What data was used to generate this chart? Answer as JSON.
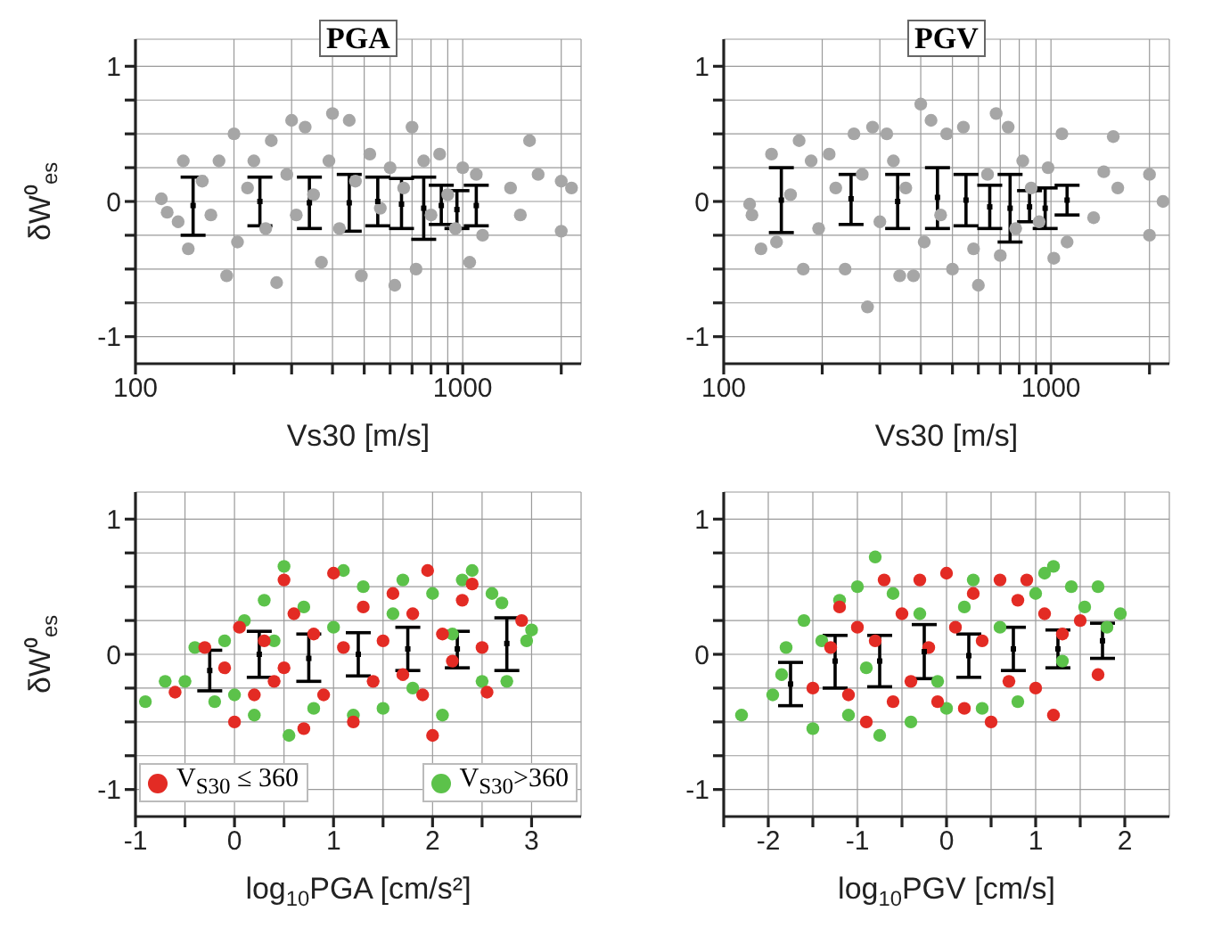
{
  "chart_data": [
    {
      "type": "scatter",
      "title": "PGA",
      "xlabel": "Vs30 [m/s]",
      "ylabel": "δW⁰$_{es}$",
      "log": "x",
      "grid": true,
      "marker": "circle",
      "xlim": [
        100,
        2300
      ],
      "xticks": [
        100,
        {
          "value": 200,
          "label": null
        },
        {
          "value": 300,
          "label": null
        },
        {
          "value": 400,
          "label": null
        },
        {
          "value": 500,
          "label": null
        },
        {
          "value": 600,
          "label": null
        },
        {
          "value": 700,
          "label": null
        },
        {
          "value": 800,
          "label": null
        },
        {
          "value": 900,
          "label": null
        },
        1000,
        {
          "value": 2000,
          "label": null
        }
      ],
      "ylim": [
        -1.2,
        1.2
      ],
      "yticks": [
        -1,
        {
          "value": -0.75,
          "label": null
        },
        {
          "value": -0.5,
          "label": null
        },
        {
          "value": -0.25,
          "label": null
        },
        0,
        {
          "value": 0.25,
          "label": null
        },
        {
          "value": 0.5,
          "label": null
        },
        {
          "value": 0.75,
          "label": null
        },
        1
      ],
      "series": [
        {
          "color": "#a6a6a6",
          "x": [
            120,
            125,
            135,
            140,
            145,
            160,
            170,
            180,
            190,
            200,
            205,
            220,
            230,
            250,
            260,
            270,
            290,
            300,
            310,
            330,
            350,
            370,
            390,
            400,
            420,
            450,
            470,
            490,
            520,
            560,
            600,
            620,
            660,
            700,
            720,
            760,
            800,
            850,
            900,
            950,
            1000,
            1050,
            1100,
            1150,
            1400,
            1500,
            1600,
            1700,
            2000,
            2000,
            2150
          ],
          "values": [
            0.02,
            -0.08,
            -0.15,
            0.3,
            -0.35,
            0.15,
            -0.1,
            0.3,
            -0.55,
            0.5,
            -0.3,
            0.1,
            0.3,
            -0.2,
            0.45,
            -0.6,
            0.2,
            0.6,
            -0.1,
            0.55,
            0.05,
            -0.45,
            0.3,
            0.65,
            -0.2,
            0.6,
            0.15,
            -0.55,
            0.35,
            -0.05,
            0.25,
            -0.62,
            0.1,
            0.55,
            -0.5,
            0.3,
            -0.1,
            0.35,
            0.05,
            -0.2,
            0.25,
            -0.45,
            0.2,
            -0.25,
            0.1,
            -0.1,
            0.45,
            0.2,
            0.15,
            -0.22,
            0.1
          ]
        },
        {
          "color": "#000000",
          "marker": "square",
          "x": [
            150,
            240,
            340,
            450,
            550,
            650,
            760,
            860,
            960,
            1100
          ],
          "values": [
            -0.03,
            0,
            -0.01,
            -0.01,
            0,
            -0.02,
            -0.05,
            -0.03,
            -0.06,
            -0.03
          ],
          "errors": [
            [
              -0.25,
              0.18
            ],
            [
              -0.18,
              0.18
            ],
            [
              -0.2,
              0.18
            ],
            [
              -0.22,
              0.2
            ],
            [
              -0.18,
              0.18
            ],
            [
              -0.2,
              0.17
            ],
            [
              -0.28,
              0.18
            ],
            [
              -0.17,
              0.12
            ],
            [
              -0.2,
              0.08
            ],
            [
              -0.18,
              0.12
            ]
          ]
        }
      ]
    },
    {
      "type": "scatter",
      "title": "PGV",
      "xlabel": "Vs30 [m/s]",
      "log": "x",
      "grid": true,
      "marker": "circle",
      "xlim": [
        100,
        2300
      ],
      "xticks": [
        100,
        {
          "value": 200,
          "label": null
        },
        {
          "value": 300,
          "label": null
        },
        {
          "value": 400,
          "label": null
        },
        {
          "value": 500,
          "label": null
        },
        {
          "value": 600,
          "label": null
        },
        {
          "value": 700,
          "label": null
        },
        {
          "value": 800,
          "label": null
        },
        {
          "value": 900,
          "label": null
        },
        1000,
        {
          "value": 2000,
          "label": null
        }
      ],
      "ylim": [
        -1.2,
        1.2
      ],
      "yticks": [
        -1,
        {
          "value": -0.75,
          "label": null
        },
        {
          "value": -0.5,
          "label": null
        },
        {
          "value": -0.25,
          "label": null
        },
        0,
        {
          "value": 0.25,
          "label": null
        },
        {
          "value": 0.5,
          "label": null
        },
        {
          "value": 0.75,
          "label": null
        },
        1
      ],
      "series": [
        {
          "color": "#a6a6a6",
          "x": [
            120,
            122,
            130,
            140,
            145,
            160,
            170,
            175,
            185,
            195,
            210,
            220,
            235,
            250,
            265,
            275,
            285,
            300,
            315,
            330,
            345,
            360,
            380,
            400,
            410,
            430,
            460,
            480,
            500,
            540,
            580,
            600,
            640,
            680,
            700,
            740,
            780,
            820,
            870,
            920,
            980,
            1020,
            1080,
            1120,
            1350,
            1450,
            1550,
            1600,
            2000,
            2000,
            2200
          ],
          "values": [
            -0.02,
            -0.1,
            -0.35,
            0.35,
            -0.3,
            0.05,
            0.45,
            -0.5,
            0.3,
            -0.2,
            0.35,
            0.1,
            -0.5,
            0.5,
            0.2,
            -0.78,
            0.55,
            -0.15,
            0.5,
            0.3,
            -0.55,
            0.1,
            -0.55,
            0.72,
            -0.3,
            0.6,
            -0.1,
            0.5,
            -0.5,
            0.55,
            -0.35,
            -0.62,
            0.2,
            0.65,
            -0.4,
            0.55,
            -0.2,
            0.3,
            0.1,
            -0.15,
            0.25,
            -0.42,
            0.5,
            -0.3,
            -0.12,
            0.22,
            0.48,
            0.1,
            0.2,
            -0.25,
            0
          ]
        },
        {
          "color": "#000000",
          "marker": "square",
          "x": [
            150,
            245,
            340,
            450,
            550,
            650,
            750,
            860,
            960,
            1120
          ],
          "values": [
            0.01,
            0.02,
            0,
            0.03,
            0.01,
            -0.04,
            -0.05,
            -0.04,
            -0.05,
            0.01
          ],
          "errors": [
            [
              -0.23,
              0.25
            ],
            [
              -0.17,
              0.2
            ],
            [
              -0.2,
              0.2
            ],
            [
              -0.2,
              0.25
            ],
            [
              -0.18,
              0.2
            ],
            [
              -0.2,
              0.12
            ],
            [
              -0.3,
              0.2
            ],
            [
              -0.15,
              0.08
            ],
            [
              -0.2,
              0.1
            ],
            [
              -0.1,
              0.12
            ]
          ]
        }
      ]
    },
    {
      "type": "scatter",
      "xlabel": "log$_{10}$PGA [cm/s²]",
      "ylabel": "δW⁰$_{es}$",
      "grid": true,
      "marker": "circle",
      "legend": "bottom",
      "xlim": [
        -1,
        3.5
      ],
      "xticks": [
        -1,
        {
          "value": -0.5,
          "label": null
        },
        0,
        {
          "value": 0.5,
          "label": null
        },
        1,
        {
          "value": 1.5,
          "label": null
        },
        2,
        {
          "value": 2.5,
          "label": null
        },
        3
      ],
      "ylim": [
        -1.2,
        1.2
      ],
      "yticks": [
        -1,
        {
          "value": -0.75,
          "label": null
        },
        {
          "value": -0.5,
          "label": null
        },
        {
          "value": -0.25,
          "label": null
        },
        0,
        {
          "value": 0.25,
          "label": null
        },
        {
          "value": 0.5,
          "label": null
        },
        {
          "value": 0.75,
          "label": null
        },
        1
      ],
      "series": [
        {
          "name": "V$_{S30}$>360",
          "color": "#5cc24a",
          "x": [
            -0.9,
            -0.7,
            -0.5,
            -0.4,
            -0.2,
            -0.1,
            0,
            0.1,
            0.2,
            0.3,
            0.4,
            0.5,
            0.55,
            0.7,
            0.8,
            1,
            1.1,
            1.2,
            1.3,
            1.5,
            1.6,
            1.7,
            1.8,
            2,
            2.1,
            2.2,
            2.3,
            2.4,
            2.5,
            2.6,
            2.7,
            2.75,
            2.95,
            3
          ],
          "values": [
            -0.35,
            -0.2,
            -0.2,
            0.05,
            -0.35,
            0.1,
            -0.3,
            0.25,
            -0.45,
            0.4,
            0.1,
            0.65,
            -0.6,
            0.35,
            -0.4,
            0.2,
            0.62,
            -0.45,
            0.5,
            -0.4,
            0.3,
            0.55,
            -0.25,
            0.45,
            -0.45,
            0.15,
            0.55,
            0.62,
            -0.2,
            0.45,
            0.38,
            -0.2,
            0.1,
            0.18
          ]
        },
        {
          "name": "V$_{S30}$ ≤ 360",
          "color": "#e32b24",
          "x": [
            -0.6,
            -0.3,
            -0.1,
            0,
            0.05,
            0.2,
            0.3,
            0.4,
            0.5,
            0.5,
            0.6,
            0.7,
            0.8,
            0.9,
            1,
            1.1,
            1.2,
            1.3,
            1.4,
            1.5,
            1.6,
            1.7,
            1.8,
            1.9,
            1.95,
            2,
            2.1,
            2.2,
            2.3,
            2.4,
            2.5,
            2.55,
            2.9
          ],
          "values": [
            -0.28,
            0.05,
            -0.1,
            -0.5,
            0.2,
            -0.3,
            0.1,
            -0.2,
            0.55,
            -0.1,
            0.3,
            -0.55,
            0.15,
            -0.3,
            0.6,
            0.05,
            -0.5,
            0.35,
            -0.2,
            0.1,
            0.45,
            -0.15,
            0.3,
            -0.3,
            0.62,
            -0.6,
            0.15,
            -0.05,
            0.4,
            0.52,
            0.05,
            -0.28,
            0.25
          ]
        },
        {
          "color": "#000000",
          "marker": "square",
          "x": [
            -0.25,
            0.25,
            0.75,
            1.25,
            1.75,
            2.25,
            2.75
          ],
          "values": [
            -0.12,
            0,
            -0.03,
            0,
            0.04,
            0.04,
            0.08
          ],
          "errors": [
            [
              -0.27,
              0.03
            ],
            [
              -0.17,
              0.17
            ],
            [
              -0.2,
              0.15
            ],
            [
              -0.16,
              0.16
            ],
            [
              -0.12,
              0.2
            ],
            [
              -0.1,
              0.17
            ],
            [
              -0.12,
              0.27
            ]
          ]
        }
      ]
    },
    {
      "type": "scatter",
      "xlabel": "log$_{10}$PGV [cm/s]",
      "grid": true,
      "marker": "circle",
      "xlim": [
        -2.5,
        2.5
      ],
      "xticks": [
        {
          "value": -2.5,
          "label": null
        },
        -2,
        {
          "value": -1.5,
          "label": null
        },
        -1,
        {
          "value": -0.5,
          "label": null
        },
        0,
        {
          "value": 0.5,
          "label": null
        },
        1,
        {
          "value": 1.5,
          "label": null
        },
        2
      ],
      "ylim": [
        -1.2,
        1.2
      ],
      "yticks": [
        -1,
        {
          "value": -0.75,
          "label": null
        },
        {
          "value": -0.5,
          "label": null
        },
        {
          "value": -0.25,
          "label": null
        },
        0,
        {
          "value": 0.25,
          "label": null
        },
        {
          "value": 0.5,
          "label": null
        },
        {
          "value": 0.75,
          "label": null
        },
        1
      ],
      "series": [
        {
          "color": "#5cc24a",
          "x": [
            -2.3,
            -1.95,
            -1.85,
            -1.8,
            -1.6,
            -1.5,
            -1.4,
            -1.2,
            -1.1,
            -1,
            -0.9,
            -0.8,
            -0.75,
            -0.6,
            -0.4,
            -0.3,
            -0.1,
            0,
            0.2,
            0.3,
            0.4,
            0.6,
            0.8,
            1,
            1.1,
            1.2,
            1.3,
            1.4,
            1.55,
            1.7,
            1.8,
            1.95
          ],
          "values": [
            -0.45,
            -0.3,
            -0.15,
            0.05,
            0.25,
            -0.55,
            0.1,
            0.4,
            -0.45,
            0.5,
            -0.1,
            0.72,
            -0.6,
            0.45,
            -0.5,
            0.3,
            -0.2,
            -0.4,
            0.35,
            0.55,
            -0.4,
            0.2,
            -0.35,
            0.45,
            0.6,
            0.65,
            -0.05,
            0.5,
            0.35,
            0.5,
            0.2,
            0.3
          ]
        },
        {
          "color": "#e32b24",
          "x": [
            -1.5,
            -1.3,
            -1.2,
            -1.1,
            -1,
            -0.9,
            -0.8,
            -0.7,
            -0.6,
            -0.5,
            -0.4,
            -0.3,
            -0.2,
            -0.1,
            0,
            0.1,
            0.2,
            0.3,
            0.4,
            0.5,
            0.6,
            0.7,
            0.8,
            0.9,
            1,
            1.1,
            1.2,
            1.3,
            1.5,
            1.7
          ],
          "values": [
            -0.25,
            0.05,
            0.35,
            -0.3,
            0.2,
            -0.5,
            0.1,
            0.55,
            -0.35,
            0.3,
            -0.2,
            0.55,
            0.05,
            -0.35,
            0.6,
            0.2,
            -0.4,
            0.45,
            0.1,
            -0.5,
            0.55,
            -0.2,
            0.4,
            0.55,
            -0.25,
            0.3,
            -0.45,
            0.15,
            0.25,
            -0.15
          ]
        },
        {
          "color": "#000000",
          "marker": "square",
          "x": [
            -1.75,
            -1.25,
            -0.75,
            -0.25,
            0.25,
            0.75,
            1.25,
            1.75
          ],
          "values": [
            -0.22,
            -0.05,
            -0.05,
            0.02,
            -0.01,
            0.04,
            0.04,
            0.1
          ],
          "errors": [
            [
              -0.38,
              -0.06
            ],
            [
              -0.25,
              0.14
            ],
            [
              -0.24,
              0.14
            ],
            [
              -0.18,
              0.22
            ],
            [
              -0.17,
              0.15
            ],
            [
              -0.12,
              0.2
            ],
            [
              -0.1,
              0.18
            ],
            [
              -0.03,
              0.23
            ]
          ]
        }
      ]
    }
  ]
}
